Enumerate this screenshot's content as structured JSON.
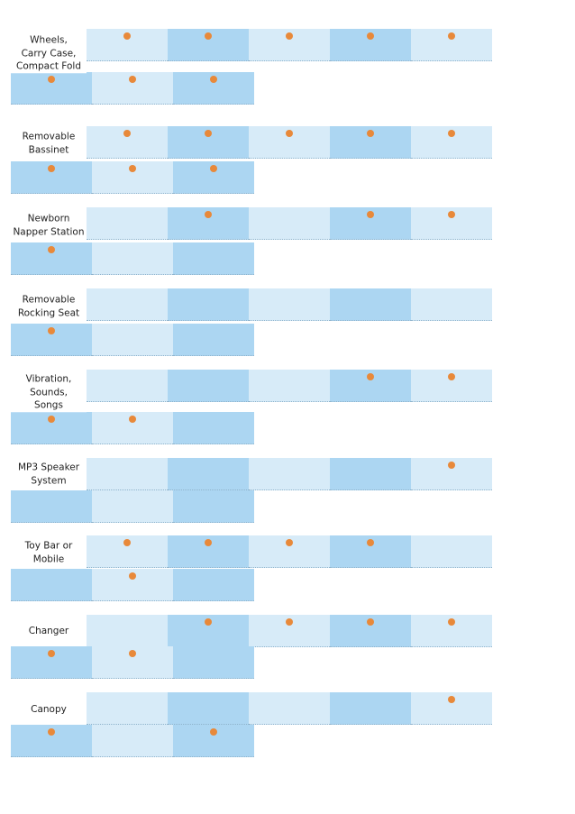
{
  "colors": {
    "cell_light": "#d7ebf8",
    "cell_dark": "#acd6f2",
    "marker": "#e8893a",
    "text": "#222222"
  },
  "features": [
    {
      "label": "Wheels,\nCarry Case,\nCompact Fold",
      "row1": [
        true,
        true,
        true,
        true,
        true
      ],
      "row2": [
        true,
        true,
        true
      ]
    },
    {
      "label": "Removable\nBassinet",
      "row1": [
        true,
        true,
        true,
        true,
        true
      ],
      "row2": [
        true,
        true,
        true
      ]
    },
    {
      "label": "Newborn\nNapper Station",
      "row1": [
        false,
        true,
        false,
        true,
        true
      ],
      "row2": [
        true,
        false,
        false
      ]
    },
    {
      "label": "Removable\nRocking Seat",
      "row1": [
        false,
        false,
        false,
        false,
        false
      ],
      "row2": [
        true,
        false,
        false
      ]
    },
    {
      "label": "Vibration,\nSounds,\nSongs",
      "row1": [
        false,
        false,
        false,
        true,
        true
      ],
      "row2": [
        true,
        true,
        false
      ]
    },
    {
      "label": "MP3 Speaker\nSystem",
      "row1": [
        false,
        false,
        false,
        false,
        true
      ],
      "row2": [
        false,
        false,
        false
      ]
    },
    {
      "label": "Toy Bar or\nMobile",
      "row1": [
        true,
        true,
        true,
        true,
        false
      ],
      "row2": [
        false,
        true,
        false
      ]
    },
    {
      "label": "Changer",
      "row1": [
        false,
        true,
        true,
        true,
        true
      ],
      "row2": [
        true,
        true,
        false
      ]
    },
    {
      "label": "Canopy",
      "row1": [
        false,
        false,
        false,
        false,
        true
      ],
      "row2": [
        true,
        false,
        true
      ]
    }
  ]
}
